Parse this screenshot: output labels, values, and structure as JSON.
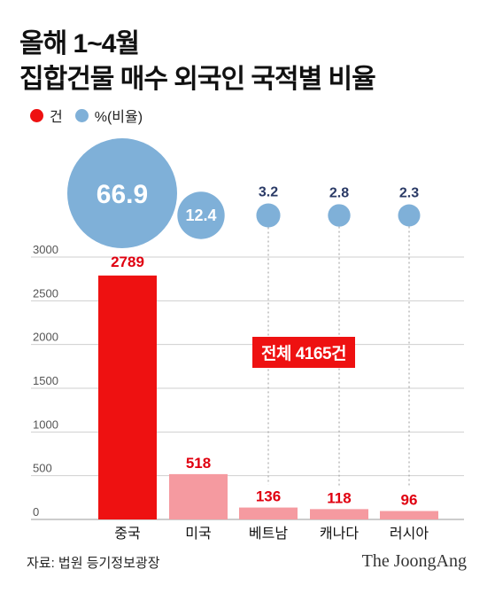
{
  "title_line1": "올해 1~4월",
  "title_line2": "집합건물 매수 외국인 국적별 비율",
  "legend": {
    "count_label": "건",
    "pct_label": "%(비율)",
    "count_color": "#ee1111",
    "pct_color": "#7fb0d8"
  },
  "total_label": "전체 4165건",
  "source": "자료: 법원 등기정보광장",
  "brand": "The JoongAng",
  "chart_data": {
    "type": "bar",
    "categories": [
      "중국",
      "미국",
      "베트남",
      "캐나다",
      "러시아"
    ],
    "values": [
      2789,
      518,
      136,
      118,
      96
    ],
    "percent": [
      66.9,
      12.4,
      3.2,
      2.8,
      2.3
    ],
    "percent_labels": [
      "66.9",
      "12.4",
      "3.2",
      "2.8",
      "2.3"
    ],
    "value_labels": [
      "2789",
      "518",
      "136",
      "118",
      "96"
    ],
    "yticks": [
      0,
      500,
      1000,
      1500,
      2000,
      2500,
      3000
    ],
    "ylim": [
      0,
      3000
    ],
    "bar_colors": [
      "#ee1111",
      "#f59aa0",
      "#f59aa0",
      "#f59aa0",
      "#f59aa0"
    ]
  }
}
